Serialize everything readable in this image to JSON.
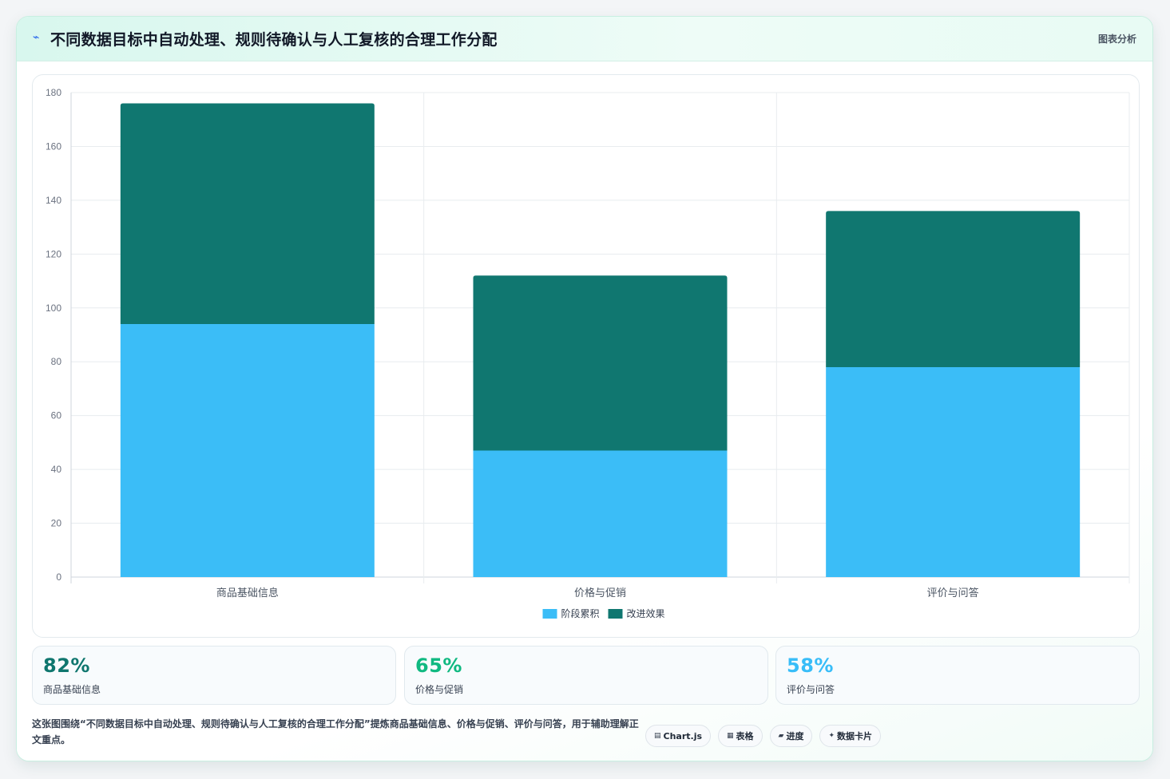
{
  "header": {
    "icon": "sparkle-icon",
    "title": "不同数据目标中自动处理、规则待确认与人工复核的合理工作分配",
    "tag": "图表分析"
  },
  "colors": {
    "series1": "#3bbdf7",
    "series2": "#107770",
    "stat1": "#0f766e",
    "stat2": "#10b981",
    "stat3": "#38bdf8"
  },
  "chart_data": {
    "type": "bar",
    "stacked": true,
    "categories": [
      "商品基础信息",
      "价格与促销",
      "评价与问答"
    ],
    "series": [
      {
        "name": "阶段累积",
        "values": [
          94,
          47,
          78
        ],
        "color": "#3bbdf7"
      },
      {
        "name": "改进效果",
        "values": [
          82,
          65,
          58
        ],
        "color": "#107770"
      }
    ],
    "ylim": [
      0,
      180
    ],
    "yticks": [
      0,
      20,
      40,
      60,
      80,
      100,
      120,
      140,
      160,
      180
    ],
    "grid": true,
    "legend": "bottom-center"
  },
  "stats": [
    {
      "value": "82%",
      "label": "商品基础信息"
    },
    {
      "value": "65%",
      "label": "价格与促销"
    },
    {
      "value": "58%",
      "label": "评价与问答"
    }
  ],
  "footer": {
    "text": "这张图围绕“不同数据目标中自动处理、规则待确认与人工复核的合理工作分配”提炼商品基础信息、价格与促销、评价与问答，用于辅助理解正文重点。",
    "chips": [
      {
        "icon": "chart-icon",
        "glyph": "▤",
        "label": "Chart.js"
      },
      {
        "icon": "table-icon",
        "glyph": "▦",
        "label": "表格"
      },
      {
        "icon": "progress-icon",
        "glyph": "▰",
        "label": "进度"
      },
      {
        "icon": "card-icon",
        "glyph": "✦",
        "label": "数据卡片"
      }
    ]
  }
}
